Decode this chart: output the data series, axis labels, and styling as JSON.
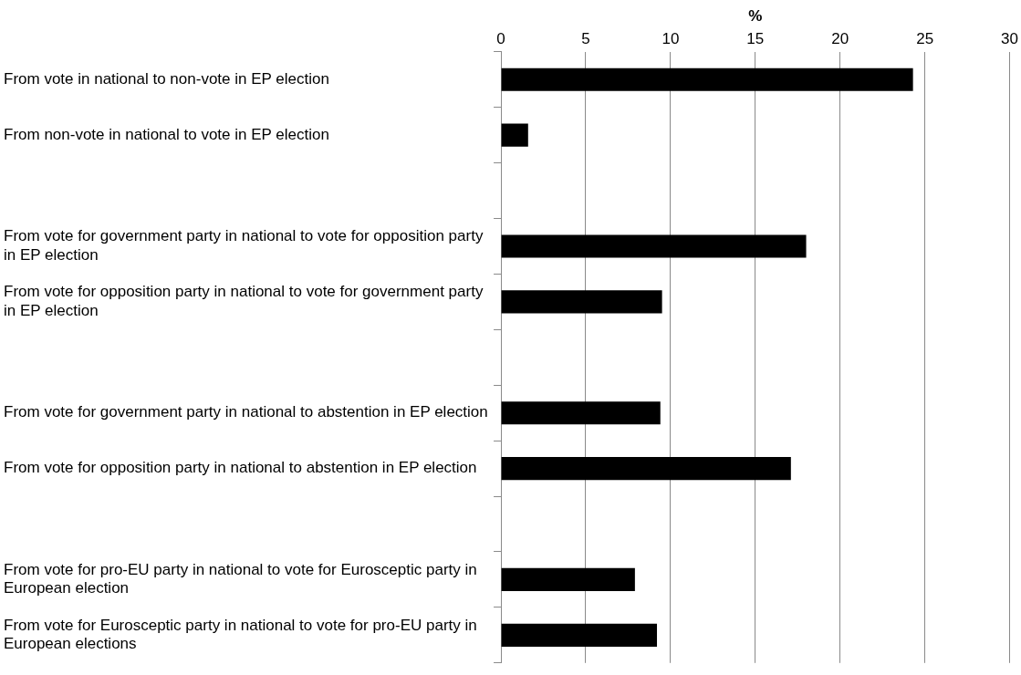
{
  "chart_data": {
    "type": "bar",
    "orientation": "horizontal",
    "xlabel": "%",
    "categories": [
      "From vote in national to non-vote in EP election",
      "From non-vote in national to vote in EP election",
      null,
      "From vote for government party in national to vote for opposition party in EP election",
      "From vote for opposition party in national to vote for government party in EP election",
      null,
      "From vote for government party in national to abstention in EP election",
      "From vote for opposition party in national to abstention in EP election",
      null,
      "From vote for pro-EU party in national to vote for Eurosceptic party in European election",
      "From vote for Eurosceptic party in national to vote for pro-EU party in European elections"
    ],
    "values": [
      24.3,
      1.6,
      null,
      18.0,
      9.5,
      null,
      9.4,
      17.1,
      null,
      7.9,
      9.2
    ],
    "color": "#000000",
    "xlim": [
      0,
      30
    ],
    "xticks": [
      0,
      5,
      10,
      15,
      20,
      25,
      30
    ],
    "grid": "x",
    "legend": false
  }
}
